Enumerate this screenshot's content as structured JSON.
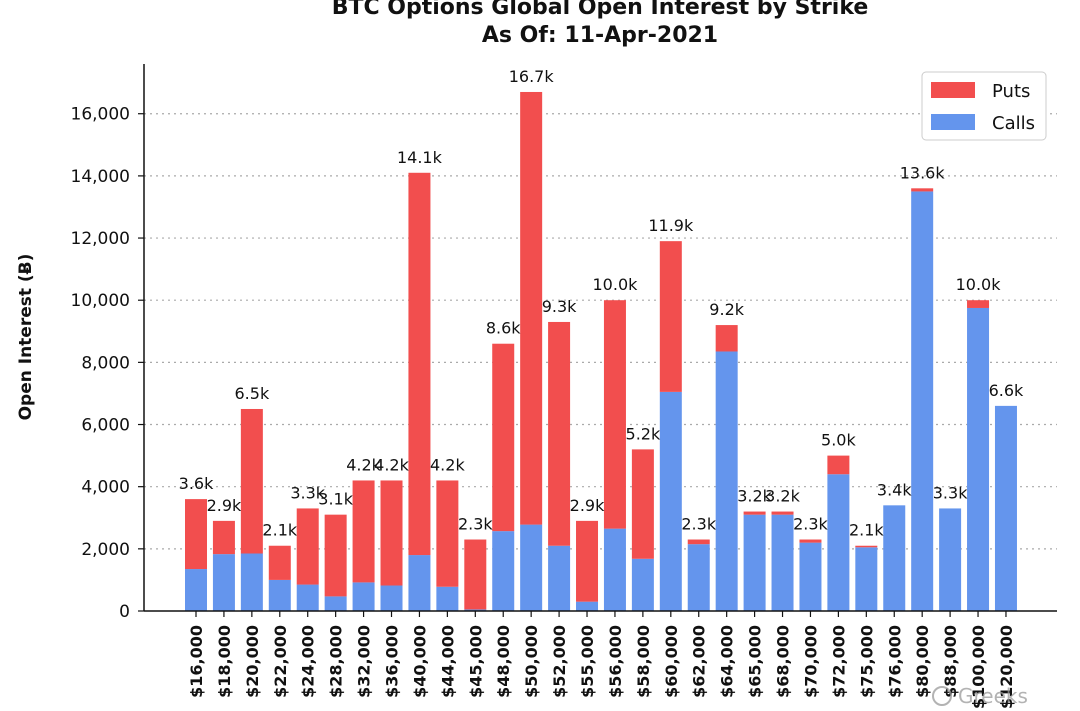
{
  "chart_data": {
    "type": "bar",
    "stacked": true,
    "title": "BTC Options Global Open Interest by Strike",
    "subtitle": "As Of: 11-Apr-2021",
    "xlabel": "",
    "ylabel": "Open Interest (Ƀ)",
    "ylim": [
      0,
      17600
    ],
    "yticks": [
      0,
      2000,
      4000,
      6000,
      8000,
      10000,
      12000,
      14000,
      16000
    ],
    "ytick_labels": [
      "0",
      "2,000",
      "4,000",
      "6,000",
      "8,000",
      "10,000",
      "12,000",
      "14,000",
      "16,000"
    ],
    "grid": "horizontal dotted",
    "legend_position": "top-right",
    "categories": [
      "$16,000",
      "$18,000",
      "$20,000",
      "$22,000",
      "$24,000",
      "$28,000",
      "$32,000",
      "$36,000",
      "$40,000",
      "$44,000",
      "$45,000",
      "$48,000",
      "$50,000",
      "$52,000",
      "$55,000",
      "$56,000",
      "$58,000",
      "$60,000",
      "$62,000",
      "$64,000",
      "$65,000",
      "$68,000",
      "$70,000",
      "$72,000",
      "$75,000",
      "$76,000",
      "$80,000",
      "$88,000",
      "$100,000",
      "$120,000"
    ],
    "series": [
      {
        "name": "Calls",
        "color": "#6495ed",
        "values": [
          1350,
          1830,
          1850,
          1000,
          850,
          470,
          920,
          820,
          1800,
          780,
          50,
          2570,
          2780,
          2100,
          300,
          2650,
          1680,
          7050,
          2150,
          8350,
          3100,
          3100,
          2200,
          4400,
          2050,
          3400,
          13500,
          3300,
          9750,
          6600
        ]
      },
      {
        "name": "Puts",
        "color": "#f24e4e",
        "values": [
          2250,
          1070,
          4650,
          1100,
          2450,
          2630,
          3280,
          3380,
          12300,
          3420,
          2250,
          6030,
          13920,
          7200,
          2600,
          7350,
          3520,
          4850,
          150,
          850,
          100,
          100,
          100,
          600,
          50,
          0,
          100,
          0,
          250,
          0
        ]
      }
    ],
    "data_labels": [
      "3.6k",
      "2.9k",
      "6.5k",
      "2.1k",
      "3.3k",
      "3.1k",
      "4.2k",
      "4.2k",
      "14.1k",
      "4.2k",
      "2.3k",
      "8.6k",
      "16.7k",
      "9.3k",
      "2.9k",
      "10.0k",
      "5.2k",
      "11.9k",
      "2.3k",
      "9.2k",
      "3.2k",
      "3.2k",
      "2.3k",
      "5.0k",
      "2.1k",
      "3.4k",
      "13.6k",
      "3.3k",
      "10.0k",
      "6.6k"
    ]
  },
  "watermark": "Greeks"
}
